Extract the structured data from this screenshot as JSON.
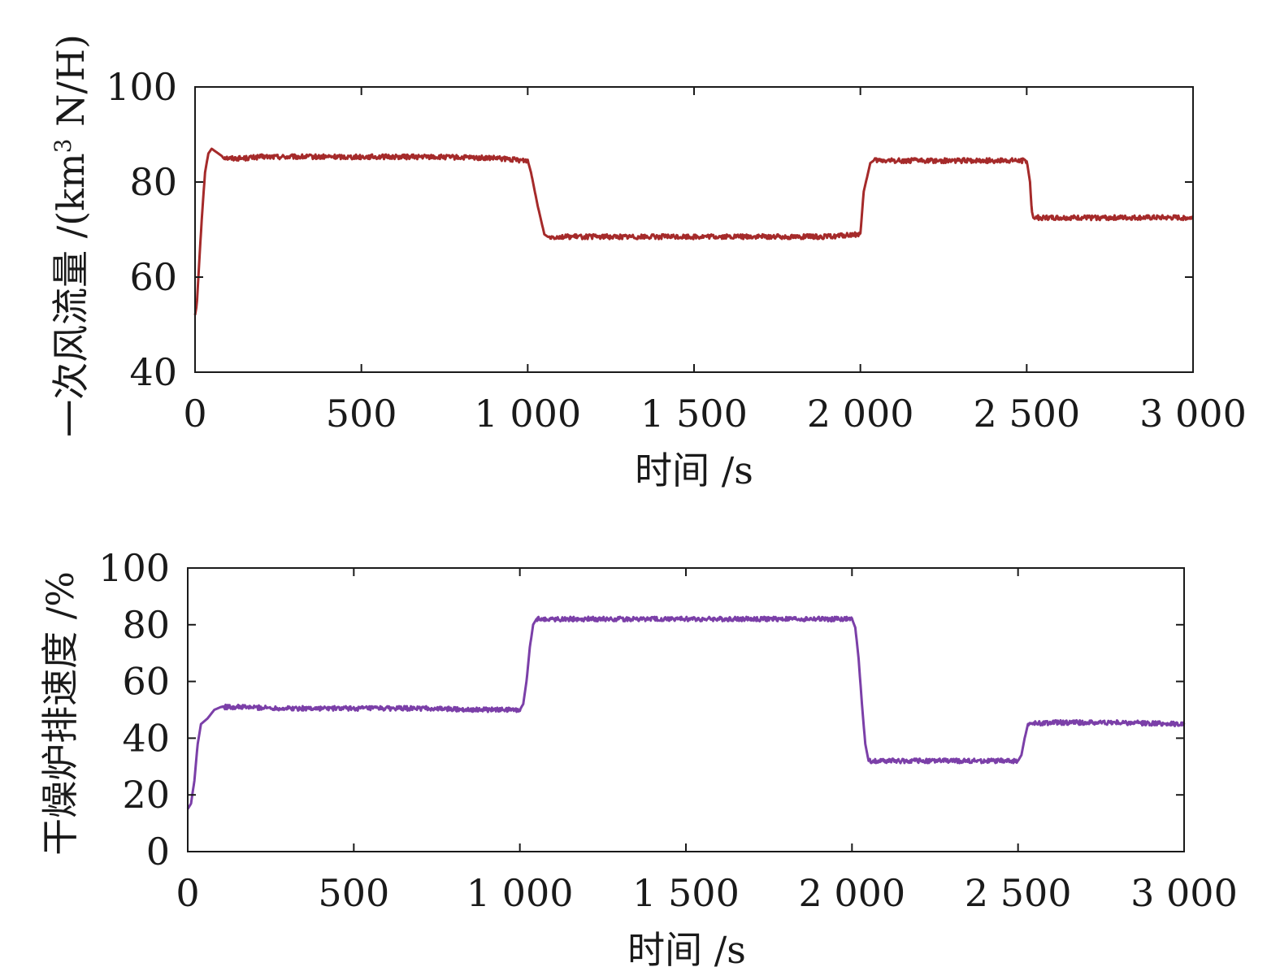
{
  "chart_data": [
    {
      "type": "line",
      "xlabel": "时间 /s",
      "ylabel_main": "一次风流量 /(km",
      "ylabel_sup": "3",
      "ylabel_end": " N/H)",
      "xlim": [
        0,
        3000
      ],
      "ylim": [
        40,
        100
      ],
      "xticks": [
        0,
        500,
        1000,
        1500,
        2000,
        2500,
        3000
      ],
      "xtick_labels": [
        "0",
        "500",
        "1 000",
        "1 500",
        "2 000",
        "2 500",
        "3 000"
      ],
      "yticks": [
        40,
        60,
        80,
        100
      ],
      "ytick_labels": [
        "40",
        "60",
        "80",
        "100"
      ],
      "color": "#a52a2a",
      "noise": 0.5,
      "series": [
        {
          "x": [
            0,
            5,
            10,
            20,
            30,
            40,
            50,
            60,
            70,
            80,
            90,
            100,
            150,
            200,
            300,
            500,
            700,
            900,
            1000,
            1010,
            1030,
            1050,
            1060,
            1100,
            1300,
            1500,
            1700,
            1900,
            2000,
            2010,
            2030,
            2040,
            2100,
            2300,
            2500,
            2510,
            2515,
            2520,
            2530,
            2600,
            2800,
            3000
          ],
          "y": [
            52,
            54,
            60,
            72,
            82,
            86,
            87,
            86.5,
            86,
            85.5,
            85.2,
            85,
            85,
            85.3,
            85.3,
            85.3,
            85.3,
            85,
            84.5,
            82,
            75,
            69,
            68.5,
            68.5,
            68.5,
            68.5,
            68.5,
            68.5,
            69,
            78,
            84,
            84.5,
            84.5,
            84.5,
            84.5,
            80,
            74,
            72.5,
            72.5,
            72.5,
            72.5,
            72.5
          ]
        }
      ]
    },
    {
      "type": "line",
      "xlabel": "时间 /s",
      "ylabel": "干燥炉排速度 /%",
      "xlim": [
        0,
        3000
      ],
      "ylim": [
        0,
        100
      ],
      "xticks": [
        0,
        500,
        1000,
        1500,
        2000,
        2500,
        3000
      ],
      "xtick_labels": [
        "0",
        "500",
        "1 000",
        "1 500",
        "2 000",
        "2 500",
        "3 000"
      ],
      "yticks": [
        0,
        20,
        40,
        60,
        80,
        100
      ],
      "ytick_labels": [
        "0",
        "20",
        "40",
        "60",
        "80",
        "100"
      ],
      "color": "#7b3fa8",
      "noise": 0.8,
      "series": [
        {
          "x": [
            0,
            10,
            20,
            30,
            40,
            60,
            80,
            100,
            150,
            300,
            500,
            700,
            900,
            1000,
            1010,
            1020,
            1030,
            1040,
            1050,
            1100,
            1500,
            1900,
            2000,
            2010,
            2020,
            2030,
            2040,
            2050,
            2100,
            2300,
            2500,
            2510,
            2520,
            2530,
            2600,
            2800,
            3000
          ],
          "y": [
            15,
            17,
            25,
            38,
            45,
            47,
            50,
            51,
            51,
            50.5,
            50.5,
            50.5,
            50,
            50,
            52,
            60,
            72,
            80,
            82,
            82,
            82,
            82,
            82,
            79,
            68,
            52,
            38,
            32,
            32,
            32,
            32,
            34,
            40,
            45,
            45.5,
            45.5,
            45
          ]
        }
      ]
    }
  ]
}
